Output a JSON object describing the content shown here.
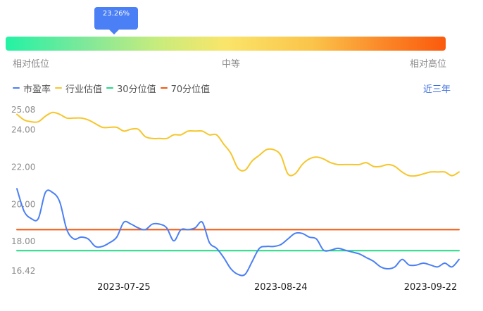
{
  "gauge": {
    "tooltip": "23.26%",
    "percentile": 23.26,
    "labels": {
      "low": "相对低位",
      "mid": "中等",
      "high": "相对高位"
    }
  },
  "legend": [
    {
      "label": "市盈率",
      "color": "#4a7ff5"
    },
    {
      "label": "行业估值",
      "color": "#f6c62b"
    },
    {
      "label": "30分位值",
      "color": "#21d985"
    },
    {
      "label": "70分位值",
      "color": "#f2560d"
    }
  ],
  "range_selector": "近三年",
  "chart_data": {
    "type": "line",
    "title": "",
    "xlabel": "",
    "ylabel": "",
    "x_tick_labels": [
      "2023-07-25",
      "2023-08-24",
      "2023-09-22"
    ],
    "y_tick_labels": [
      "25.08",
      "24.00",
      "22.00",
      "20.00",
      "18.00",
      "16.42"
    ],
    "ylim": [
      16.42,
      25.08
    ],
    "x": [
      "2023-07-04",
      "2023-07-05",
      "2023-07-06",
      "2023-07-07",
      "2023-07-10",
      "2023-07-11",
      "2023-07-12",
      "2023-07-13",
      "2023-07-14",
      "2023-07-17",
      "2023-07-18",
      "2023-07-19",
      "2023-07-20",
      "2023-07-21",
      "2023-07-24",
      "2023-07-25",
      "2023-07-26",
      "2023-07-27",
      "2023-07-28",
      "2023-07-31",
      "2023-08-01",
      "2023-08-02",
      "2023-08-03",
      "2023-08-04",
      "2023-08-07",
      "2023-08-08",
      "2023-08-09",
      "2023-08-10",
      "2023-08-11",
      "2023-08-14",
      "2023-08-15",
      "2023-08-16",
      "2023-08-17",
      "2023-08-18",
      "2023-08-21",
      "2023-08-22",
      "2023-08-23",
      "2023-08-24",
      "2023-08-25",
      "2023-08-28",
      "2023-08-29",
      "2023-08-30",
      "2023-08-31",
      "2023-09-01",
      "2023-09-04",
      "2023-09-05",
      "2023-09-06",
      "2023-09-07",
      "2023-09-08",
      "2023-09-11",
      "2023-09-12",
      "2023-09-13",
      "2023-09-14",
      "2023-09-15",
      "2023-09-18",
      "2023-09-19",
      "2023-09-20",
      "2023-09-21",
      "2023-09-22",
      "2023-09-25",
      "2023-09-26",
      "2023-09-27",
      "2023-09-28"
    ],
    "series": [
      {
        "name": "市盈率",
        "color": "#4a7ff5",
        "values": [
          21.1,
          19.9,
          19.5,
          19.5,
          20.9,
          20.9,
          20.4,
          18.9,
          18.4,
          18.5,
          18.4,
          18.0,
          18.0,
          18.2,
          18.5,
          19.3,
          19.2,
          19.0,
          18.9,
          19.2,
          19.2,
          19.0,
          18.3,
          18.9,
          18.9,
          19.0,
          19.3,
          18.2,
          17.9,
          17.4,
          16.8,
          16.5,
          16.5,
          17.2,
          17.9,
          18.0,
          18.0,
          18.1,
          18.4,
          18.7,
          18.7,
          18.5,
          18.4,
          17.8,
          17.8,
          17.9,
          17.8,
          17.7,
          17.6,
          17.4,
          17.2,
          16.9,
          16.8,
          16.9,
          17.3,
          17.0,
          17.0,
          17.1,
          17.0,
          16.9,
          17.1,
          16.9,
          17.3
        ]
      },
      {
        "name": "行业估值",
        "color": "#f6c62b",
        "values": [
          25.1,
          24.8,
          24.7,
          24.7,
          25.0,
          25.2,
          25.1,
          24.9,
          24.9,
          24.9,
          24.8,
          24.6,
          24.4,
          24.4,
          24.4,
          24.2,
          24.3,
          24.3,
          23.9,
          23.8,
          23.8,
          23.8,
          24.0,
          24.0,
          24.2,
          24.2,
          24.2,
          24.0,
          24.0,
          23.5,
          23.0,
          22.2,
          22.1,
          22.6,
          22.9,
          23.2,
          23.2,
          22.9,
          21.9,
          21.9,
          22.4,
          22.7,
          22.8,
          22.7,
          22.5,
          22.4,
          22.4,
          22.4,
          22.4,
          22.5,
          22.3,
          22.3,
          22.4,
          22.3,
          22.0,
          21.8,
          21.8,
          21.9,
          22.0,
          22.0,
          22.0,
          21.8,
          22.0
        ]
      },
      {
        "name": "30分位值",
        "color": "#21d985",
        "values": [
          17.77,
          17.77,
          17.77,
          17.77,
          17.77,
          17.77,
          17.77,
          17.77,
          17.77,
          17.77,
          17.77,
          17.77,
          17.77,
          17.77,
          17.77,
          17.77,
          17.77,
          17.77,
          17.77,
          17.77,
          17.77,
          17.77,
          17.77,
          17.77,
          17.77,
          17.77,
          17.77,
          17.77,
          17.77,
          17.77,
          17.77,
          17.77,
          17.77,
          17.77,
          17.77,
          17.77,
          17.77,
          17.77,
          17.77,
          17.77,
          17.77,
          17.77,
          17.77,
          17.77,
          17.77,
          17.77,
          17.77,
          17.77,
          17.77,
          17.77,
          17.77,
          17.77,
          17.77,
          17.77,
          17.77,
          17.77,
          17.77,
          17.77,
          17.77,
          17.77,
          17.77,
          17.77,
          17.77
        ]
      },
      {
        "name": "70分位值",
        "color": "#f2560d",
        "values": [
          18.9,
          18.9,
          18.9,
          18.9,
          18.9,
          18.9,
          18.9,
          18.9,
          18.9,
          18.9,
          18.9,
          18.9,
          18.9,
          18.9,
          18.9,
          18.9,
          18.9,
          18.9,
          18.9,
          18.9,
          18.9,
          18.9,
          18.9,
          18.9,
          18.9,
          18.9,
          18.9,
          18.9,
          18.9,
          18.9,
          18.9,
          18.9,
          18.9,
          18.9,
          18.9,
          18.9,
          18.9,
          18.9,
          18.9,
          18.9,
          18.9,
          18.9,
          18.9,
          18.9,
          18.9,
          18.9,
          18.9,
          18.9,
          18.9,
          18.9,
          18.9,
          18.9,
          18.9,
          18.9,
          18.9,
          18.9,
          18.9,
          18.9,
          18.9,
          18.9,
          18.9,
          18.9,
          18.9
        ]
      }
    ],
    "grid": false,
    "legend_position": "top-left"
  }
}
